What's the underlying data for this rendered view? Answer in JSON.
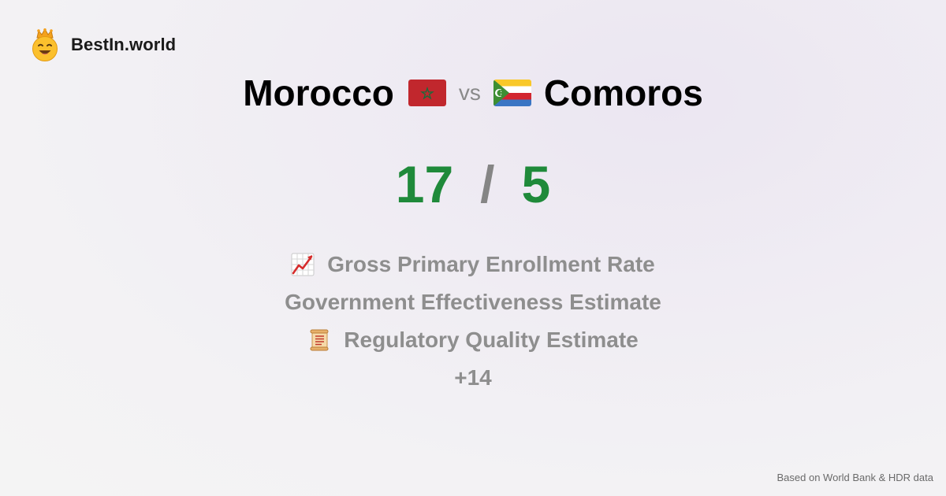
{
  "brand": {
    "name": "BestIn.world",
    "logo_icon": "crowned-smiley-icon"
  },
  "comparison": {
    "country_a": {
      "name": "Morocco",
      "flag_icon": "morocco-flag-icon",
      "score": "17"
    },
    "vs_label": "vs",
    "country_b": {
      "name": "Comoros",
      "flag_icon": "comoros-flag-icon",
      "score": "5"
    },
    "score_separator": "/"
  },
  "metrics": [
    {
      "label": "Gross Primary Enrollment Rate",
      "icon": "chart-increasing-icon"
    },
    {
      "label": "Government Effectiveness Estimate",
      "icon": ""
    },
    {
      "label": "Regulatory Quality Estimate",
      "icon": "scroll-icon"
    }
  ],
  "more_label": "+14",
  "footer": {
    "source": "Based on World Bank & HDR data"
  },
  "colors": {
    "score": "#1f8a3a",
    "muted": "#8e8e8e",
    "title": "#000000"
  }
}
